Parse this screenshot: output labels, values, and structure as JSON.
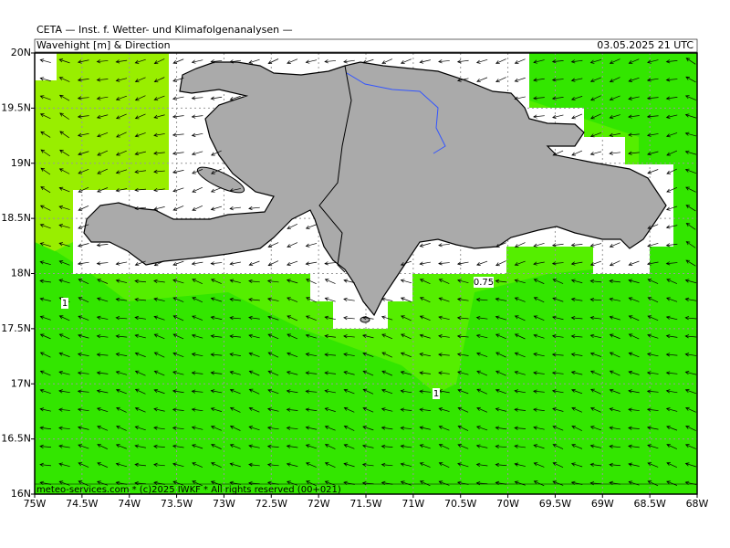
{
  "header": {
    "title": "CETA — Inst. f. Wetter- und Klimafolgenanalysen —",
    "variable": "Wavehight [m] & Direction",
    "valid_time": "03.05.2025 21 UTC"
  },
  "axes": {
    "x_labels": [
      "75W",
      "74.5W",
      "74W",
      "73.5W",
      "73W",
      "72.5W",
      "72W",
      "71.5W",
      "71W",
      "70.5W",
      "70W",
      "69.5W",
      "69W",
      "68.5W",
      "68W"
    ],
    "y_labels": [
      "20N",
      "19.5N",
      "19N",
      "18.5N",
      "18N",
      "17.5N",
      "17N",
      "16.5N",
      "16N"
    ]
  },
  "contour_labels": [
    "1",
    "0.75",
    "1"
  ],
  "footer": "meteo-services.com * (c)2025 IWKF * All rights reserved (00+021)"
}
